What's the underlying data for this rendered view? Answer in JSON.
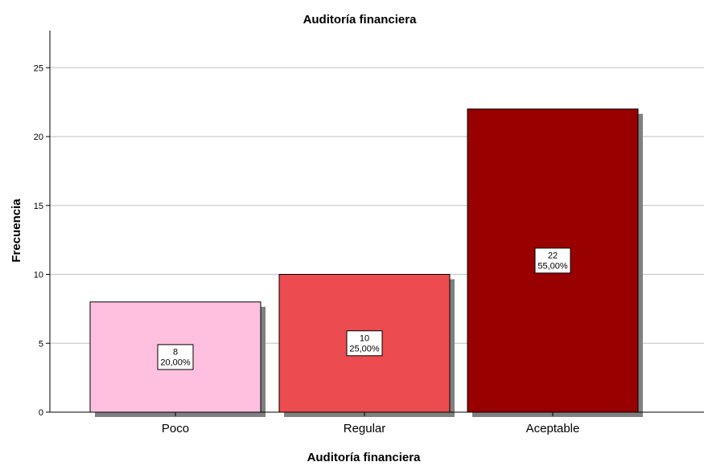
{
  "chart_data": {
    "type": "bar",
    "title": "Auditoría financiera",
    "xlabel": "Auditoría financiera",
    "ylabel": "Frecuencia",
    "categories": [
      "Poco",
      "Regular",
      "Aceptable"
    ],
    "values": [
      8,
      10,
      22
    ],
    "percent_labels": [
      "20,00%",
      "25,00%",
      "55,00%"
    ],
    "count_labels": [
      "8",
      "10",
      "22"
    ],
    "colors": [
      "#ffc0e0",
      "#ec4b4f",
      "#990000"
    ],
    "shadow_color": "#808080",
    "ylim": [
      0,
      27.5
    ],
    "yticks": [
      0,
      5,
      10,
      15,
      20,
      25
    ],
    "grid": true,
    "legend": "none"
  }
}
